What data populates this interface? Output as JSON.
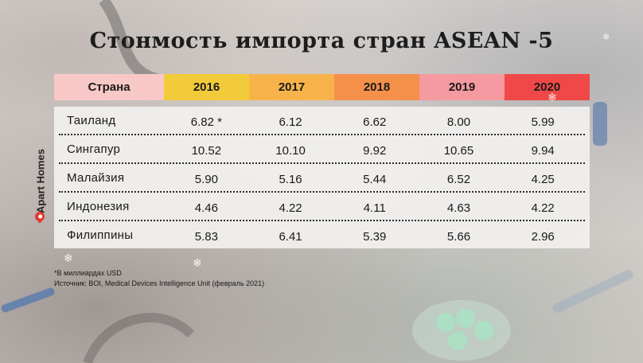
{
  "title": "Стонмость импорта стран ASEAN -5",
  "brand": "Apart Homes",
  "chart_data": {
    "type": "table",
    "title": "Стонмость импорта стран ASEAN -5",
    "header_first": "Страна",
    "columns": [
      "2016",
      "2017",
      "2018",
      "2019",
      "2020"
    ],
    "header_colors": [
      "#f8c8c6",
      "#f2cb3a",
      "#f7b34a",
      "#f4904a",
      "#f49aa0",
      "#f04848"
    ],
    "rows": [
      {
        "country": "Таиланд",
        "values": [
          "6.82 *",
          "6.12",
          "6.62",
          "8.00",
          "5.99"
        ]
      },
      {
        "country": "Сингапур",
        "values": [
          "10.52",
          "10.10",
          "9.92",
          "10.65",
          "9.94"
        ]
      },
      {
        "country": "Малайзия",
        "values": [
          "5.90",
          "5.16",
          "5.44",
          "6.52",
          "4.25"
        ]
      },
      {
        "country": "Индонезия",
        "values": [
          "4.46",
          "4.22",
          "4.11",
          "4.63",
          "4.22"
        ]
      },
      {
        "country": "Филиппины",
        "values": [
          "5.83",
          "6.41",
          "5.39",
          "5.66",
          "2.96"
        ]
      }
    ]
  },
  "notes": {
    "unit": "*В миллиардах USD",
    "source": "Источник: BOI, Medical Devices Intelligence Unit (февраль 2021)"
  }
}
